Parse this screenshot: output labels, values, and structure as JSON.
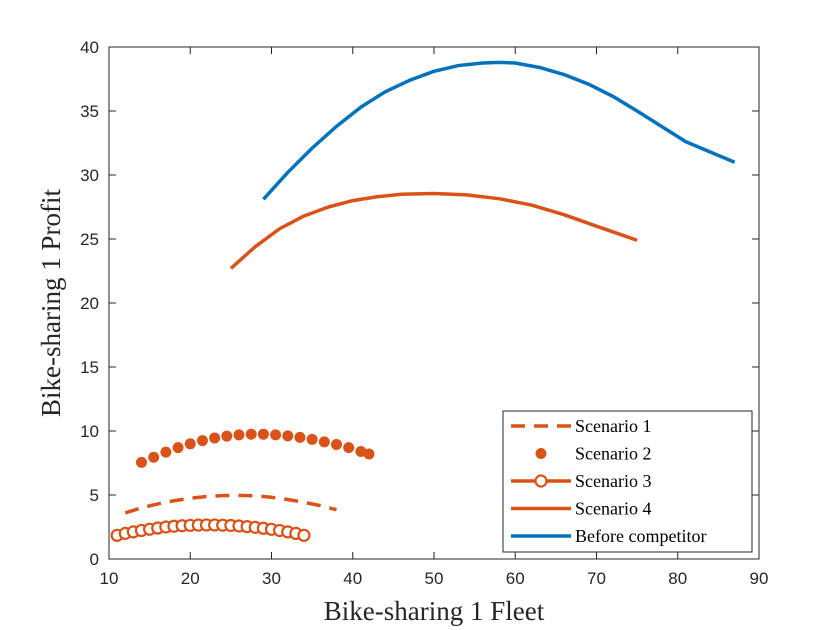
{
  "chart_data": {
    "type": "line",
    "title": "",
    "xlabel": "Bike-sharing 1 Fleet",
    "ylabel": "Bike-sharing 1 Profit",
    "xlim": [
      10,
      90
    ],
    "ylim": [
      0,
      40
    ],
    "xticks": [
      10,
      20,
      30,
      40,
      50,
      60,
      70,
      80,
      90
    ],
    "yticks": [
      0,
      5,
      10,
      15,
      20,
      25,
      30,
      35,
      40
    ],
    "grid": false,
    "legend_position": "bottom-right",
    "series": [
      {
        "name": "Scenario 1",
        "style": "dashed",
        "color": "#D95319",
        "x": [
          12,
          14,
          16,
          18,
          20,
          22,
          24,
          26,
          28,
          30,
          32,
          34,
          36,
          38
        ],
        "y": [
          3.6,
          4.0,
          4.3,
          4.55,
          4.75,
          4.88,
          4.95,
          4.97,
          4.93,
          4.82,
          4.65,
          4.43,
          4.17,
          3.85
        ]
      },
      {
        "name": "Scenario 2",
        "style": "markers-filled",
        "color": "#D95319",
        "x": [
          14,
          15.5,
          17,
          18.5,
          20,
          21.5,
          23,
          24.5,
          26,
          27.5,
          29,
          30.5,
          32,
          33.5,
          35,
          36.5,
          38,
          39.5,
          41,
          42
        ],
        "y": [
          7.55,
          7.95,
          8.35,
          8.7,
          9.0,
          9.25,
          9.45,
          9.6,
          9.7,
          9.75,
          9.75,
          9.7,
          9.62,
          9.5,
          9.35,
          9.15,
          8.95,
          8.7,
          8.4,
          8.2
        ]
      },
      {
        "name": "Scenario 3",
        "style": "line-open-markers",
        "color": "#D95319",
        "x": [
          11,
          12,
          13,
          14,
          15,
          16,
          17,
          18,
          19,
          20,
          21,
          22,
          23,
          24,
          25,
          26,
          27,
          28,
          29,
          30,
          31,
          32,
          33,
          34
        ],
        "y": [
          1.85,
          2.0,
          2.12,
          2.23,
          2.33,
          2.42,
          2.5,
          2.56,
          2.6,
          2.63,
          2.65,
          2.66,
          2.66,
          2.64,
          2.62,
          2.58,
          2.53,
          2.47,
          2.4,
          2.32,
          2.23,
          2.12,
          2.0,
          1.85
        ]
      },
      {
        "name": "Scenario 4",
        "style": "solid",
        "color": "#D95319",
        "x": [
          25,
          28,
          31,
          34,
          37,
          40,
          43,
          46,
          50,
          54,
          58,
          62,
          66,
          70,
          75
        ],
        "y": [
          22.7,
          24.4,
          25.8,
          26.8,
          27.5,
          28.0,
          28.3,
          28.5,
          28.55,
          28.45,
          28.15,
          27.65,
          26.9,
          26.0,
          24.9
        ]
      },
      {
        "name": "Before competitor",
        "style": "solid",
        "color": "#0072BD",
        "x": [
          29,
          32,
          35,
          38,
          41,
          44,
          47,
          50,
          53,
          56,
          58,
          60,
          63,
          66,
          69,
          72,
          75,
          78,
          81,
          84,
          87
        ],
        "y": [
          28.1,
          30.2,
          32.1,
          33.8,
          35.3,
          36.5,
          37.4,
          38.1,
          38.55,
          38.75,
          38.8,
          38.75,
          38.4,
          37.85,
          37.1,
          36.15,
          35.0,
          33.8,
          32.6,
          31.8,
          31.0
        ]
      }
    ]
  }
}
